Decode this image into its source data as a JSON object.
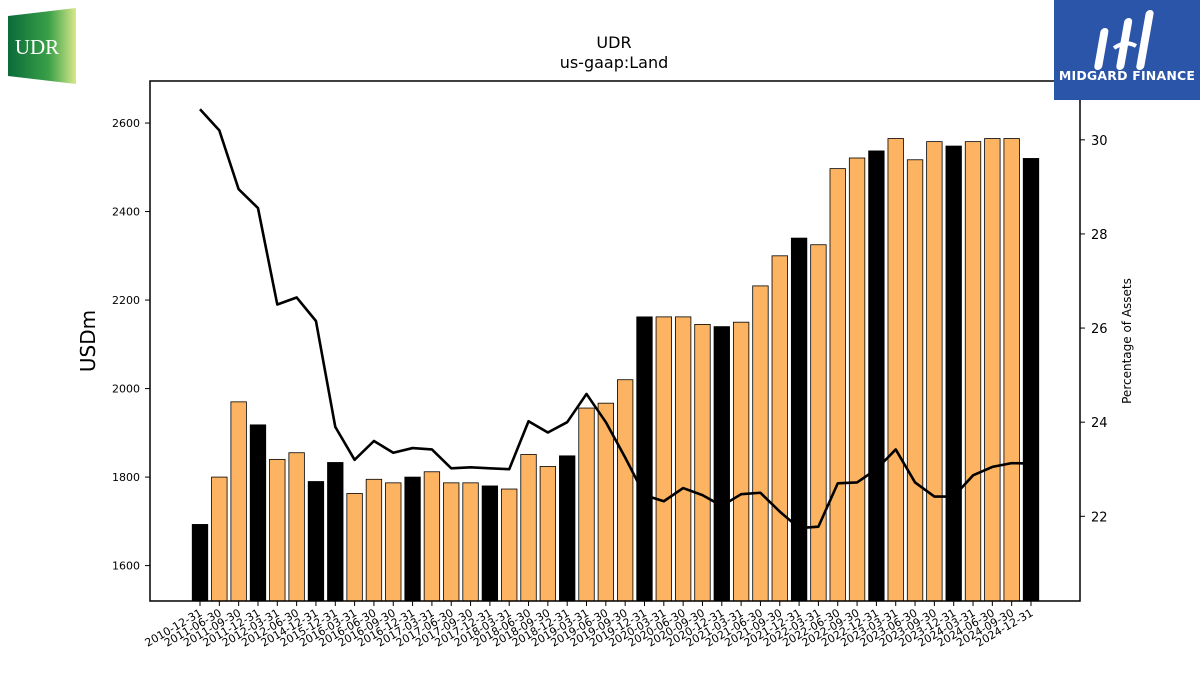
{
  "logos": {
    "left_text": "UDR",
    "right_text": "MIDGARD FINANCE"
  },
  "chart_data": {
    "type": "bar",
    "title": "UDR",
    "subtitle": "us-gaap:Land",
    "ylabel": "USDm",
    "y2label": "Percentage of Assets",
    "ylim": [
      1520,
      2695
    ],
    "y2lim": [
      20.2,
      31.25
    ],
    "yticks": [
      1600,
      1800,
      2000,
      2200,
      2400,
      2600
    ],
    "y2ticks": [
      22,
      24,
      26,
      28,
      30
    ],
    "colors": {
      "bar_q4": "#000000",
      "bar_other": "#fdb462",
      "line": "#000000"
    },
    "categories": [
      "2010-12-31",
      "2011-06-30",
      "2011-09-30",
      "2011-12-31",
      "2012-03-31",
      "2012-06-30",
      "2014-12-31",
      "2015-12-31",
      "2016-03-31",
      "2016-06-30",
      "2016-09-30",
      "2016-12-31",
      "2017-03-31",
      "2017-06-30",
      "2017-09-30",
      "2017-12-31",
      "2018-03-31",
      "2018-06-30",
      "2018-09-30",
      "2018-12-31",
      "2019-03-31",
      "2019-06-30",
      "2019-09-30",
      "2019-12-31",
      "2020-03-31",
      "2020-06-30",
      "2020-09-30",
      "2020-12-31",
      "2021-03-31",
      "2021-06-30",
      "2021-09-30",
      "2021-12-31",
      "2022-03-31",
      "2022-06-30",
      "2022-09-30",
      "2022-12-31",
      "2023-03-31",
      "2023-06-30",
      "2023-09-30",
      "2023-12-31",
      "2024-03-31",
      "2024-06-30",
      "2024-09-30",
      "2024-12-31"
    ],
    "series": [
      {
        "type": "bar",
        "values": [
          1693,
          1800,
          1970,
          1918,
          1840,
          1855,
          1790,
          1833,
          1763,
          1795,
          1787,
          1800,
          1812,
          1787,
          1787,
          1780,
          1773,
          1851,
          1824,
          1848,
          1956,
          1967,
          2020,
          2162,
          2162,
          2162,
          2145,
          2140,
          2150,
          2232,
          2300,
          2340,
          2325,
          2497,
          2521,
          2537,
          2565,
          2517,
          2558,
          2548,
          2558,
          2565,
          2565,
          2520
        ]
      },
      {
        "type": "line",
        "axis": "right",
        "values": [
          30.65,
          30.2,
          28.95,
          28.55,
          26.5,
          26.65,
          26.15,
          23.9,
          23.2,
          23.6,
          23.35,
          23.45,
          23.42,
          23.02,
          23.04,
          23.02,
          23.0,
          24.02,
          23.78,
          24.0,
          24.6,
          24.0,
          23.25,
          22.45,
          22.32,
          22.6,
          22.45,
          22.22,
          22.47,
          22.5,
          22.1,
          21.75,
          21.78,
          22.7,
          22.72,
          23.0,
          23.42,
          22.72,
          22.42,
          22.42,
          22.87,
          23.05,
          23.13,
          23.12
        ]
      }
    ]
  }
}
